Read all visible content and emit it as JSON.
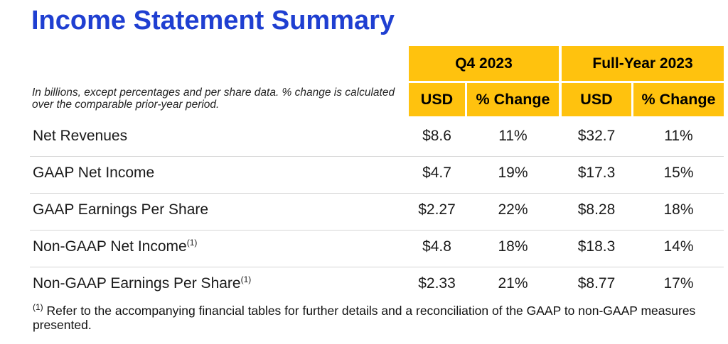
{
  "title": "Income Statement Summary",
  "note": "In billions, except percentages and per share data. % change is calculated over the comparable prior-year period.",
  "groups": {
    "q4": "Q4 2023",
    "fy": "Full-Year 2023"
  },
  "subheaders": {
    "usd": "USD",
    "pct": "% Change"
  },
  "rows": [
    {
      "label": "Net Revenues",
      "sup": "",
      "q4_usd": "$8.6",
      "q4_pct": "11%",
      "fy_usd": "$32.7",
      "fy_pct": "11%"
    },
    {
      "label": "GAAP Net Income",
      "sup": "",
      "q4_usd": "$4.7",
      "q4_pct": "19%",
      "fy_usd": "$17.3",
      "fy_pct": "15%"
    },
    {
      "label": "GAAP Earnings Per Share",
      "sup": "",
      "q4_usd": "$2.27",
      "q4_pct": "22%",
      "fy_usd": "$8.28",
      "fy_pct": "18%"
    },
    {
      "label": "Non-GAAP Net Income",
      "sup": "(1)",
      "q4_usd": "$4.8",
      "q4_pct": "18%",
      "fy_usd": "$18.3",
      "fy_pct": "14%"
    },
    {
      "label": "Non-GAAP Earnings Per Share",
      "sup": "(1)",
      "q4_usd": "$2.33",
      "q4_pct": "21%",
      "fy_usd": "$8.77",
      "fy_pct": "17%"
    }
  ],
  "footnote": {
    "mark": "(1)",
    "text": " Refer to the accompanying financial tables for further details and a reconciliation of the GAAP to non-GAAP measures presented."
  },
  "colors": {
    "title": "#1f3fd1",
    "header_fill": "#ffc20e"
  }
}
